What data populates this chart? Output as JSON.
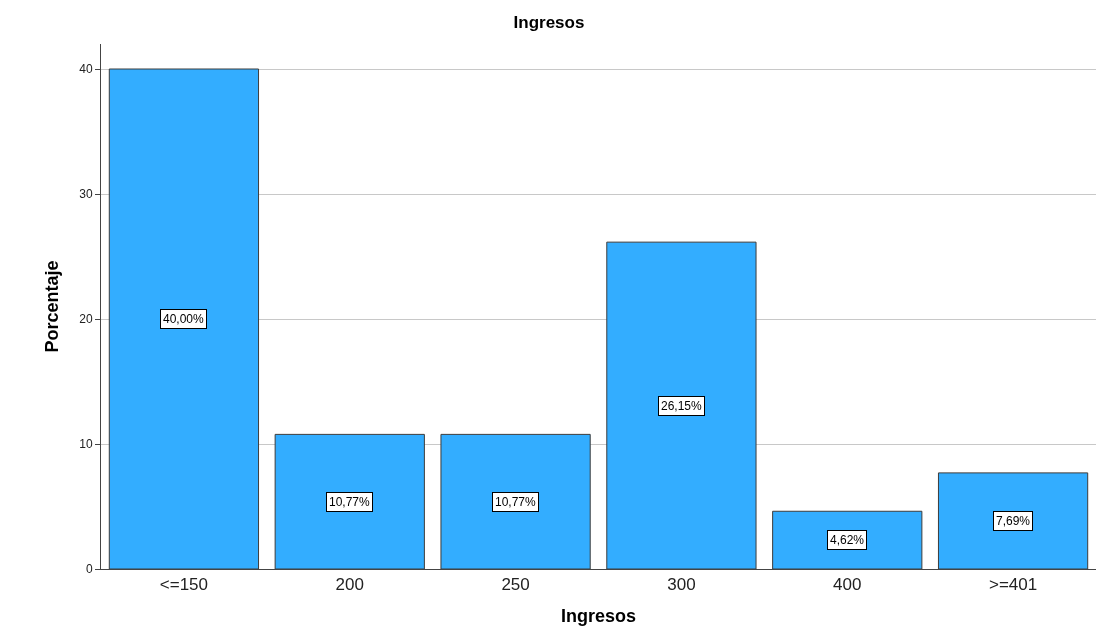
{
  "chart_data": {
    "type": "bar",
    "title": "Ingresos",
    "xlabel": "Ingresos",
    "ylabel": "Porcentaje",
    "categories": [
      "<=150",
      "200",
      "250",
      "300",
      "400",
      ">=401"
    ],
    "values": [
      40.0,
      10.77,
      10.77,
      26.15,
      4.62,
      7.69
    ],
    "value_labels": [
      "40,00%",
      "10,77%",
      "10,77%",
      "26,15%",
      "4,62%",
      "7,69%"
    ],
    "color": "#33adff",
    "ylim": [
      0,
      42
    ],
    "yticks": [
      0,
      10,
      20,
      30,
      40
    ],
    "grid": "y"
  }
}
